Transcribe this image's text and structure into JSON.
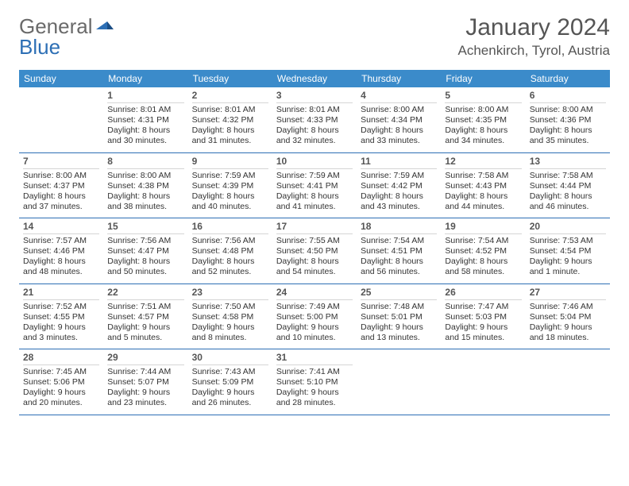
{
  "logo": {
    "text1": "General",
    "text2": "Blue"
  },
  "title": "January 2024",
  "location": "Achenkirch, Tyrol, Austria",
  "weekdays": [
    "Sunday",
    "Monday",
    "Tuesday",
    "Wednesday",
    "Thursday",
    "Friday",
    "Saturday"
  ],
  "colors": {
    "header_bg": "#3b8bca",
    "header_text": "#ffffff",
    "row_border": "#2d6fb5",
    "daynum": "#555555",
    "text": "#333333",
    "logo_gray": "#6a6a6a",
    "logo_blue": "#2d6fb5"
  },
  "weeks": [
    [
      {
        "day": "",
        "sunrise": "",
        "sunset": "",
        "dl1": "",
        "dl2": ""
      },
      {
        "day": "1",
        "sunrise": "Sunrise: 8:01 AM",
        "sunset": "Sunset: 4:31 PM",
        "dl1": "Daylight: 8 hours",
        "dl2": "and 30 minutes."
      },
      {
        "day": "2",
        "sunrise": "Sunrise: 8:01 AM",
        "sunset": "Sunset: 4:32 PM",
        "dl1": "Daylight: 8 hours",
        "dl2": "and 31 minutes."
      },
      {
        "day": "3",
        "sunrise": "Sunrise: 8:01 AM",
        "sunset": "Sunset: 4:33 PM",
        "dl1": "Daylight: 8 hours",
        "dl2": "and 32 minutes."
      },
      {
        "day": "4",
        "sunrise": "Sunrise: 8:00 AM",
        "sunset": "Sunset: 4:34 PM",
        "dl1": "Daylight: 8 hours",
        "dl2": "and 33 minutes."
      },
      {
        "day": "5",
        "sunrise": "Sunrise: 8:00 AM",
        "sunset": "Sunset: 4:35 PM",
        "dl1": "Daylight: 8 hours",
        "dl2": "and 34 minutes."
      },
      {
        "day": "6",
        "sunrise": "Sunrise: 8:00 AM",
        "sunset": "Sunset: 4:36 PM",
        "dl1": "Daylight: 8 hours",
        "dl2": "and 35 minutes."
      }
    ],
    [
      {
        "day": "7",
        "sunrise": "Sunrise: 8:00 AM",
        "sunset": "Sunset: 4:37 PM",
        "dl1": "Daylight: 8 hours",
        "dl2": "and 37 minutes."
      },
      {
        "day": "8",
        "sunrise": "Sunrise: 8:00 AM",
        "sunset": "Sunset: 4:38 PM",
        "dl1": "Daylight: 8 hours",
        "dl2": "and 38 minutes."
      },
      {
        "day": "9",
        "sunrise": "Sunrise: 7:59 AM",
        "sunset": "Sunset: 4:39 PM",
        "dl1": "Daylight: 8 hours",
        "dl2": "and 40 minutes."
      },
      {
        "day": "10",
        "sunrise": "Sunrise: 7:59 AM",
        "sunset": "Sunset: 4:41 PM",
        "dl1": "Daylight: 8 hours",
        "dl2": "and 41 minutes."
      },
      {
        "day": "11",
        "sunrise": "Sunrise: 7:59 AM",
        "sunset": "Sunset: 4:42 PM",
        "dl1": "Daylight: 8 hours",
        "dl2": "and 43 minutes."
      },
      {
        "day": "12",
        "sunrise": "Sunrise: 7:58 AM",
        "sunset": "Sunset: 4:43 PM",
        "dl1": "Daylight: 8 hours",
        "dl2": "and 44 minutes."
      },
      {
        "day": "13",
        "sunrise": "Sunrise: 7:58 AM",
        "sunset": "Sunset: 4:44 PM",
        "dl1": "Daylight: 8 hours",
        "dl2": "and 46 minutes."
      }
    ],
    [
      {
        "day": "14",
        "sunrise": "Sunrise: 7:57 AM",
        "sunset": "Sunset: 4:46 PM",
        "dl1": "Daylight: 8 hours",
        "dl2": "and 48 minutes."
      },
      {
        "day": "15",
        "sunrise": "Sunrise: 7:56 AM",
        "sunset": "Sunset: 4:47 PM",
        "dl1": "Daylight: 8 hours",
        "dl2": "and 50 minutes."
      },
      {
        "day": "16",
        "sunrise": "Sunrise: 7:56 AM",
        "sunset": "Sunset: 4:48 PM",
        "dl1": "Daylight: 8 hours",
        "dl2": "and 52 minutes."
      },
      {
        "day": "17",
        "sunrise": "Sunrise: 7:55 AM",
        "sunset": "Sunset: 4:50 PM",
        "dl1": "Daylight: 8 hours",
        "dl2": "and 54 minutes."
      },
      {
        "day": "18",
        "sunrise": "Sunrise: 7:54 AM",
        "sunset": "Sunset: 4:51 PM",
        "dl1": "Daylight: 8 hours",
        "dl2": "and 56 minutes."
      },
      {
        "day": "19",
        "sunrise": "Sunrise: 7:54 AM",
        "sunset": "Sunset: 4:52 PM",
        "dl1": "Daylight: 8 hours",
        "dl2": "and 58 minutes."
      },
      {
        "day": "20",
        "sunrise": "Sunrise: 7:53 AM",
        "sunset": "Sunset: 4:54 PM",
        "dl1": "Daylight: 9 hours",
        "dl2": "and 1 minute."
      }
    ],
    [
      {
        "day": "21",
        "sunrise": "Sunrise: 7:52 AM",
        "sunset": "Sunset: 4:55 PM",
        "dl1": "Daylight: 9 hours",
        "dl2": "and 3 minutes."
      },
      {
        "day": "22",
        "sunrise": "Sunrise: 7:51 AM",
        "sunset": "Sunset: 4:57 PM",
        "dl1": "Daylight: 9 hours",
        "dl2": "and 5 minutes."
      },
      {
        "day": "23",
        "sunrise": "Sunrise: 7:50 AM",
        "sunset": "Sunset: 4:58 PM",
        "dl1": "Daylight: 9 hours",
        "dl2": "and 8 minutes."
      },
      {
        "day": "24",
        "sunrise": "Sunrise: 7:49 AM",
        "sunset": "Sunset: 5:00 PM",
        "dl1": "Daylight: 9 hours",
        "dl2": "and 10 minutes."
      },
      {
        "day": "25",
        "sunrise": "Sunrise: 7:48 AM",
        "sunset": "Sunset: 5:01 PM",
        "dl1": "Daylight: 9 hours",
        "dl2": "and 13 minutes."
      },
      {
        "day": "26",
        "sunrise": "Sunrise: 7:47 AM",
        "sunset": "Sunset: 5:03 PM",
        "dl1": "Daylight: 9 hours",
        "dl2": "and 15 minutes."
      },
      {
        "day": "27",
        "sunrise": "Sunrise: 7:46 AM",
        "sunset": "Sunset: 5:04 PM",
        "dl1": "Daylight: 9 hours",
        "dl2": "and 18 minutes."
      }
    ],
    [
      {
        "day": "28",
        "sunrise": "Sunrise: 7:45 AM",
        "sunset": "Sunset: 5:06 PM",
        "dl1": "Daylight: 9 hours",
        "dl2": "and 20 minutes."
      },
      {
        "day": "29",
        "sunrise": "Sunrise: 7:44 AM",
        "sunset": "Sunset: 5:07 PM",
        "dl1": "Daylight: 9 hours",
        "dl2": "and 23 minutes."
      },
      {
        "day": "30",
        "sunrise": "Sunrise: 7:43 AM",
        "sunset": "Sunset: 5:09 PM",
        "dl1": "Daylight: 9 hours",
        "dl2": "and 26 minutes."
      },
      {
        "day": "31",
        "sunrise": "Sunrise: 7:41 AM",
        "sunset": "Sunset: 5:10 PM",
        "dl1": "Daylight: 9 hours",
        "dl2": "and 28 minutes."
      },
      {
        "day": "",
        "sunrise": "",
        "sunset": "",
        "dl1": "",
        "dl2": ""
      },
      {
        "day": "",
        "sunrise": "",
        "sunset": "",
        "dl1": "",
        "dl2": ""
      },
      {
        "day": "",
        "sunrise": "",
        "sunset": "",
        "dl1": "",
        "dl2": ""
      }
    ]
  ]
}
